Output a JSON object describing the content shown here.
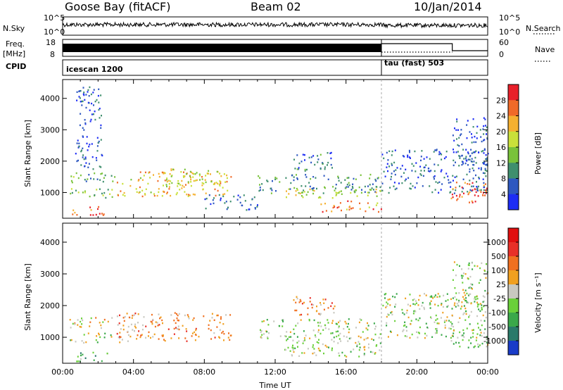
{
  "header": {
    "station": "Goose Bay (fitACF)",
    "beam": "Beam 02",
    "date": "10/Jan/2014"
  },
  "top_labels": {
    "nsky": "N.Sky",
    "freq": "Freq.",
    "freq_unit": "[MHz]",
    "cpid": "CPID",
    "nsearch": "N.Search",
    "nave": "Nave",
    "nsky_ticks": [
      "10^5",
      "10^0"
    ],
    "nsearch_ticks": [
      "10^5",
      "10^0"
    ],
    "freq_ticks": [
      "18",
      "8"
    ],
    "nave_ticks": [
      "60",
      "0"
    ]
  },
  "chart_data": [
    {
      "type": "heatmap",
      "panel": "cpid",
      "segments": [
        {
          "label": "icescan 1200",
          "start_h": 0,
          "end_h": 18
        },
        {
          "label": "tau (fast) 503",
          "start_h": 18,
          "end_h": 24
        }
      ]
    },
    {
      "type": "heatmap",
      "panel": "power",
      "ylabel": "Slant Range [km]",
      "xlim": [
        0,
        24
      ],
      "ylim": [
        180,
        4600
      ],
      "yticks": [
        "1000",
        "2000",
        "3000",
        "4000"
      ],
      "ytick_values": [
        1000,
        2000,
        3000,
        4000
      ],
      "colorbar": {
        "label": "Power [dB]",
        "tick_labels": [
          "4",
          "8",
          "12",
          "16",
          "20",
          "24",
          "28"
        ],
        "colors": [
          "#1d2df5",
          "#2e58c0",
          "#3f8f6e",
          "#79c23a",
          "#c9e03a",
          "#f5b030",
          "#f06a28",
          "#e8202a"
        ]
      },
      "scatter_regions": [
        {
          "t0": 0.3,
          "t1": 3.0,
          "r0": 1300,
          "r1": 1650,
          "level": 0.35
        },
        {
          "t0": 0.4,
          "t1": 3.2,
          "r0": 850,
          "r1": 1150,
          "level": 0.45
        },
        {
          "t0": 0.5,
          "t1": 2.5,
          "r0": 300,
          "r1": 600,
          "level": 0.85
        },
        {
          "t0": 3.0,
          "t1": 9.5,
          "r0": 900,
          "r1": 1700,
          "level": 0.65
        },
        {
          "t0": 6.0,
          "t1": 9.0,
          "r0": 1300,
          "r1": 1800,
          "level": 0.55
        },
        {
          "t0": 8.0,
          "t1": 11.0,
          "r0": 450,
          "r1": 950,
          "level": 0.2
        },
        {
          "t0": 11.0,
          "t1": 18.0,
          "r0": 1000,
          "r1": 1600,
          "level": 0.3
        },
        {
          "t0": 12.5,
          "t1": 18.0,
          "r0": 850,
          "r1": 1150,
          "level": 0.55
        },
        {
          "t0": 14.5,
          "t1": 18.0,
          "r0": 400,
          "r1": 750,
          "level": 0.75
        },
        {
          "t0": 13.0,
          "t1": 15.5,
          "r0": 1700,
          "r1": 2300,
          "level": 0.25
        },
        {
          "t0": 18.0,
          "t1": 24.0,
          "r0": 1000,
          "r1": 2400,
          "level": 0.2
        },
        {
          "t0": 22.0,
          "t1": 24.0,
          "r0": 1900,
          "r1": 3400,
          "level": 0.15
        },
        {
          "t0": 21.8,
          "t1": 24.0,
          "r0": 700,
          "r1": 1350,
          "level": 0.8
        },
        {
          "t0": 23.0,
          "t1": 24.0,
          "r0": 900,
          "r1": 1200,
          "level": 0.95
        },
        {
          "t0": 0.7,
          "t1": 2.2,
          "r0": 1700,
          "r1": 4400,
          "level": 0.2
        }
      ]
    },
    {
      "type": "heatmap",
      "panel": "velocity",
      "xlabel": "Time UT",
      "ylabel": "Slant Range [km]",
      "xlim": [
        0,
        24
      ],
      "ylim": [
        180,
        4600
      ],
      "xticks": [
        "00:00",
        "04:00",
        "08:00",
        "12:00",
        "16:00",
        "20:00",
        "00:00"
      ],
      "xtick_values": [
        0,
        4,
        8,
        12,
        16,
        20,
        24
      ],
      "yticks": [
        "1000",
        "2000",
        "3000",
        "4000"
      ],
      "ytick_values": [
        1000,
        2000,
        3000,
        4000
      ],
      "colorbar": {
        "label": "Velocity [m s⁻¹]",
        "tick_labels": [
          "1000",
          "500",
          "100",
          "25",
          "-25",
          "-100",
          "-500",
          "-1000"
        ],
        "colors": [
          "#1a3cc8",
          "#2a7a6a",
          "#3aa84a",
          "#6ad03a",
          "#c8c8c0",
          "#f0a020",
          "#f07020",
          "#e83028",
          "#e01010"
        ]
      },
      "scatter_regions": [
        {
          "t0": 0.3,
          "t1": 3.0,
          "r0": 1300,
          "r1": 1650,
          "level": 0.55
        },
        {
          "t0": 0.4,
          "t1": 3.2,
          "r0": 850,
          "r1": 1150,
          "level": 0.45
        },
        {
          "t0": 0.5,
          "t1": 2.5,
          "r0": 250,
          "r1": 550,
          "level": 0.3
        },
        {
          "t0": 3.0,
          "t1": 9.5,
          "r0": 900,
          "r1": 1800,
          "level": 0.65
        },
        {
          "t0": 11.0,
          "t1": 18.0,
          "r0": 900,
          "r1": 1600,
          "level": 0.45
        },
        {
          "t0": 12.5,
          "t1": 18.0,
          "r0": 400,
          "r1": 900,
          "level": 0.45
        },
        {
          "t0": 13.0,
          "t1": 15.5,
          "r0": 1700,
          "r1": 2300,
          "level": 0.65
        },
        {
          "t0": 18.0,
          "t1": 24.0,
          "r0": 1000,
          "r1": 2400,
          "level": 0.45
        },
        {
          "t0": 22.0,
          "t1": 24.0,
          "r0": 1900,
          "r1": 3400,
          "level": 0.45
        },
        {
          "t0": 21.8,
          "t1": 24.0,
          "r0": 700,
          "r1": 1350,
          "level": 0.4
        }
      ]
    }
  ]
}
